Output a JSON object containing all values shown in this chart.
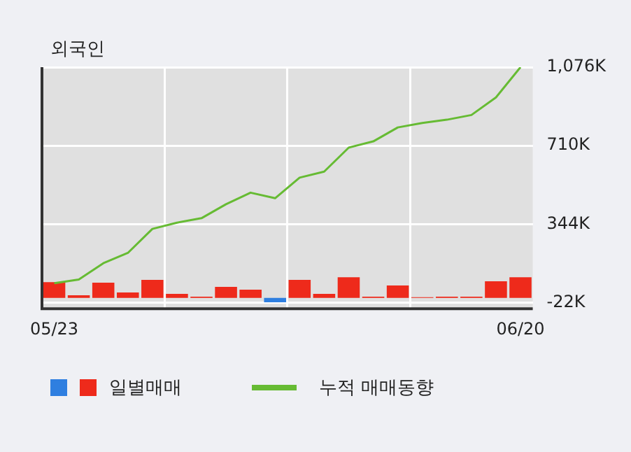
{
  "chart_data": {
    "type": "bar",
    "title": "외국인",
    "categories": [
      "05/23",
      null,
      null,
      null,
      null,
      null,
      null,
      null,
      null,
      null,
      null,
      null,
      null,
      null,
      null,
      null,
      null,
      null,
      null,
      "06/20"
    ],
    "series": [
      {
        "name": "일별매매",
        "colors": [
          "#ee2a1b",
          "#ee2a1b",
          "#ee2a1b",
          "#ee2a1b",
          "#ee2a1b",
          "#ee2a1b",
          "#ee2a1b",
          "#ee2a1b",
          "#ee2a1b",
          "#2f7fe0",
          "#ee2a1b",
          "#ee2a1b",
          "#ee2a1b",
          "#ee2a1b",
          "#ee2a1b",
          "#ee2a1b",
          "#ee2a1b",
          "#ee2a1b",
          "#ee2a1b",
          "#ee2a1b"
        ],
        "values": [
          74,
          13,
          71,
          26,
          84,
          19,
          6,
          52,
          39,
          -20,
          84,
          19,
          97,
          6,
          58,
          4,
          6,
          6,
          78,
          97
        ]
      },
      {
        "name": "누적 매매동향",
        "type": "line",
        "color": "#66bb33",
        "values": [
          69,
          86,
          162,
          210,
          322,
          351,
          372,
          437,
          491,
          465,
          561,
          589,
          701,
          730,
          795,
          816,
          831,
          853,
          935,
          1076
        ]
      }
    ],
    "ylim": [
      -50,
      1076
    ],
    "yticks": [
      {
        "value": -22,
        "label": "-22K"
      },
      {
        "value": 344,
        "label": "344K"
      },
      {
        "value": 710,
        "label": "710K"
      },
      {
        "value": 1076,
        "label": "1,076K"
      }
    ],
    "grid": true,
    "legend": "bottom"
  }
}
